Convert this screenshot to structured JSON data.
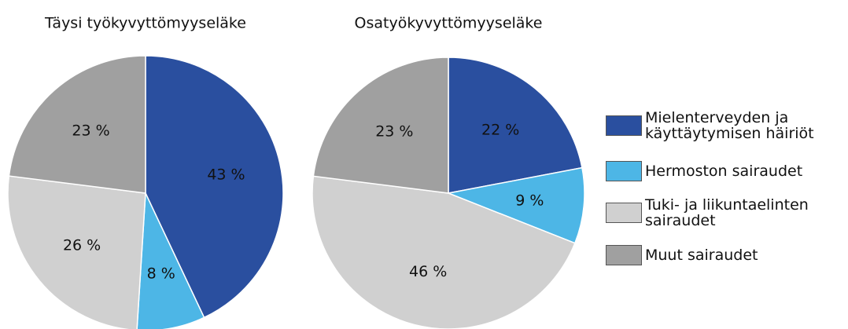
{
  "legend": {
    "labels": [
      "Mielenterveyden ja käyttäytymisen häiriöt",
      "Hermoston sairaudet",
      "Tuki- ja liikuntaelinten sairaudet",
      "Muut sairaudet"
    ],
    "colors": [
      "#2a4f9f",
      "#4db6e6",
      "#d0d0d0",
      "#a0a0a0"
    ]
  },
  "chart_data": [
    {
      "type": "pie",
      "title": "Täysi työkyvyttömyyseläke",
      "values": [
        43,
        8,
        26,
        23
      ],
      "value_labels": [
        "43 %",
        "8 %",
        "26 %",
        "23 %"
      ]
    },
    {
      "type": "pie",
      "title": "Osatyökyvyttömyyseläke",
      "values": [
        22,
        9,
        46,
        23
      ],
      "value_labels": [
        "22 %",
        "9 %",
        "46 %",
        "23 %"
      ]
    }
  ]
}
